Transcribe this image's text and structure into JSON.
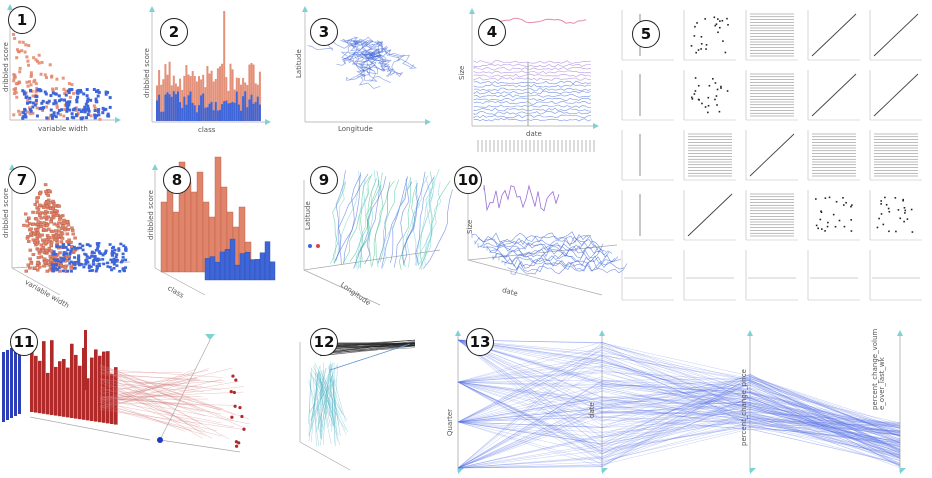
{
  "panels": [
    {
      "id": "p1",
      "number": "1",
      "ylabel": "dribbled score",
      "xlabel": "variable width"
    },
    {
      "id": "p2",
      "number": "2",
      "ylabel": "dribbled score",
      "xlabel": "class"
    },
    {
      "id": "p3",
      "number": "3",
      "ylabel": "Latitude",
      "xlabel": "Longitude"
    },
    {
      "id": "p4",
      "number": "4",
      "ylabel": "Size",
      "xlabel": "date"
    },
    {
      "id": "p5",
      "number": "5"
    },
    {
      "id": "p7",
      "number": "7",
      "ylabel": "dribbled score",
      "xlabel": "variable width"
    },
    {
      "id": "p8",
      "number": "8",
      "ylabel": "dribbled score",
      "xlabel": "class"
    },
    {
      "id": "p9",
      "number": "9",
      "ylabel": "Latitude",
      "xlabel": "Longitude"
    },
    {
      "id": "p10",
      "number": "10",
      "ylabel": "Size",
      "xlabel": "date"
    },
    {
      "id": "p11",
      "number": "11"
    },
    {
      "id": "p12",
      "number": "12"
    },
    {
      "id": "p13",
      "number": "13",
      "axes": [
        "Quarter",
        "date",
        "percent_change_price",
        "percent_change_volum e_over_last_wk"
      ]
    }
  ],
  "colors": {
    "orange": "#e0856b",
    "blue": "#3f66d8",
    "purple": "#9b6fd6",
    "red": "#b02a2a",
    "teal": "#5ab8c8",
    "green": "#3fc08a",
    "black": "#222222",
    "teal_axis": "#7cd3d3"
  }
}
